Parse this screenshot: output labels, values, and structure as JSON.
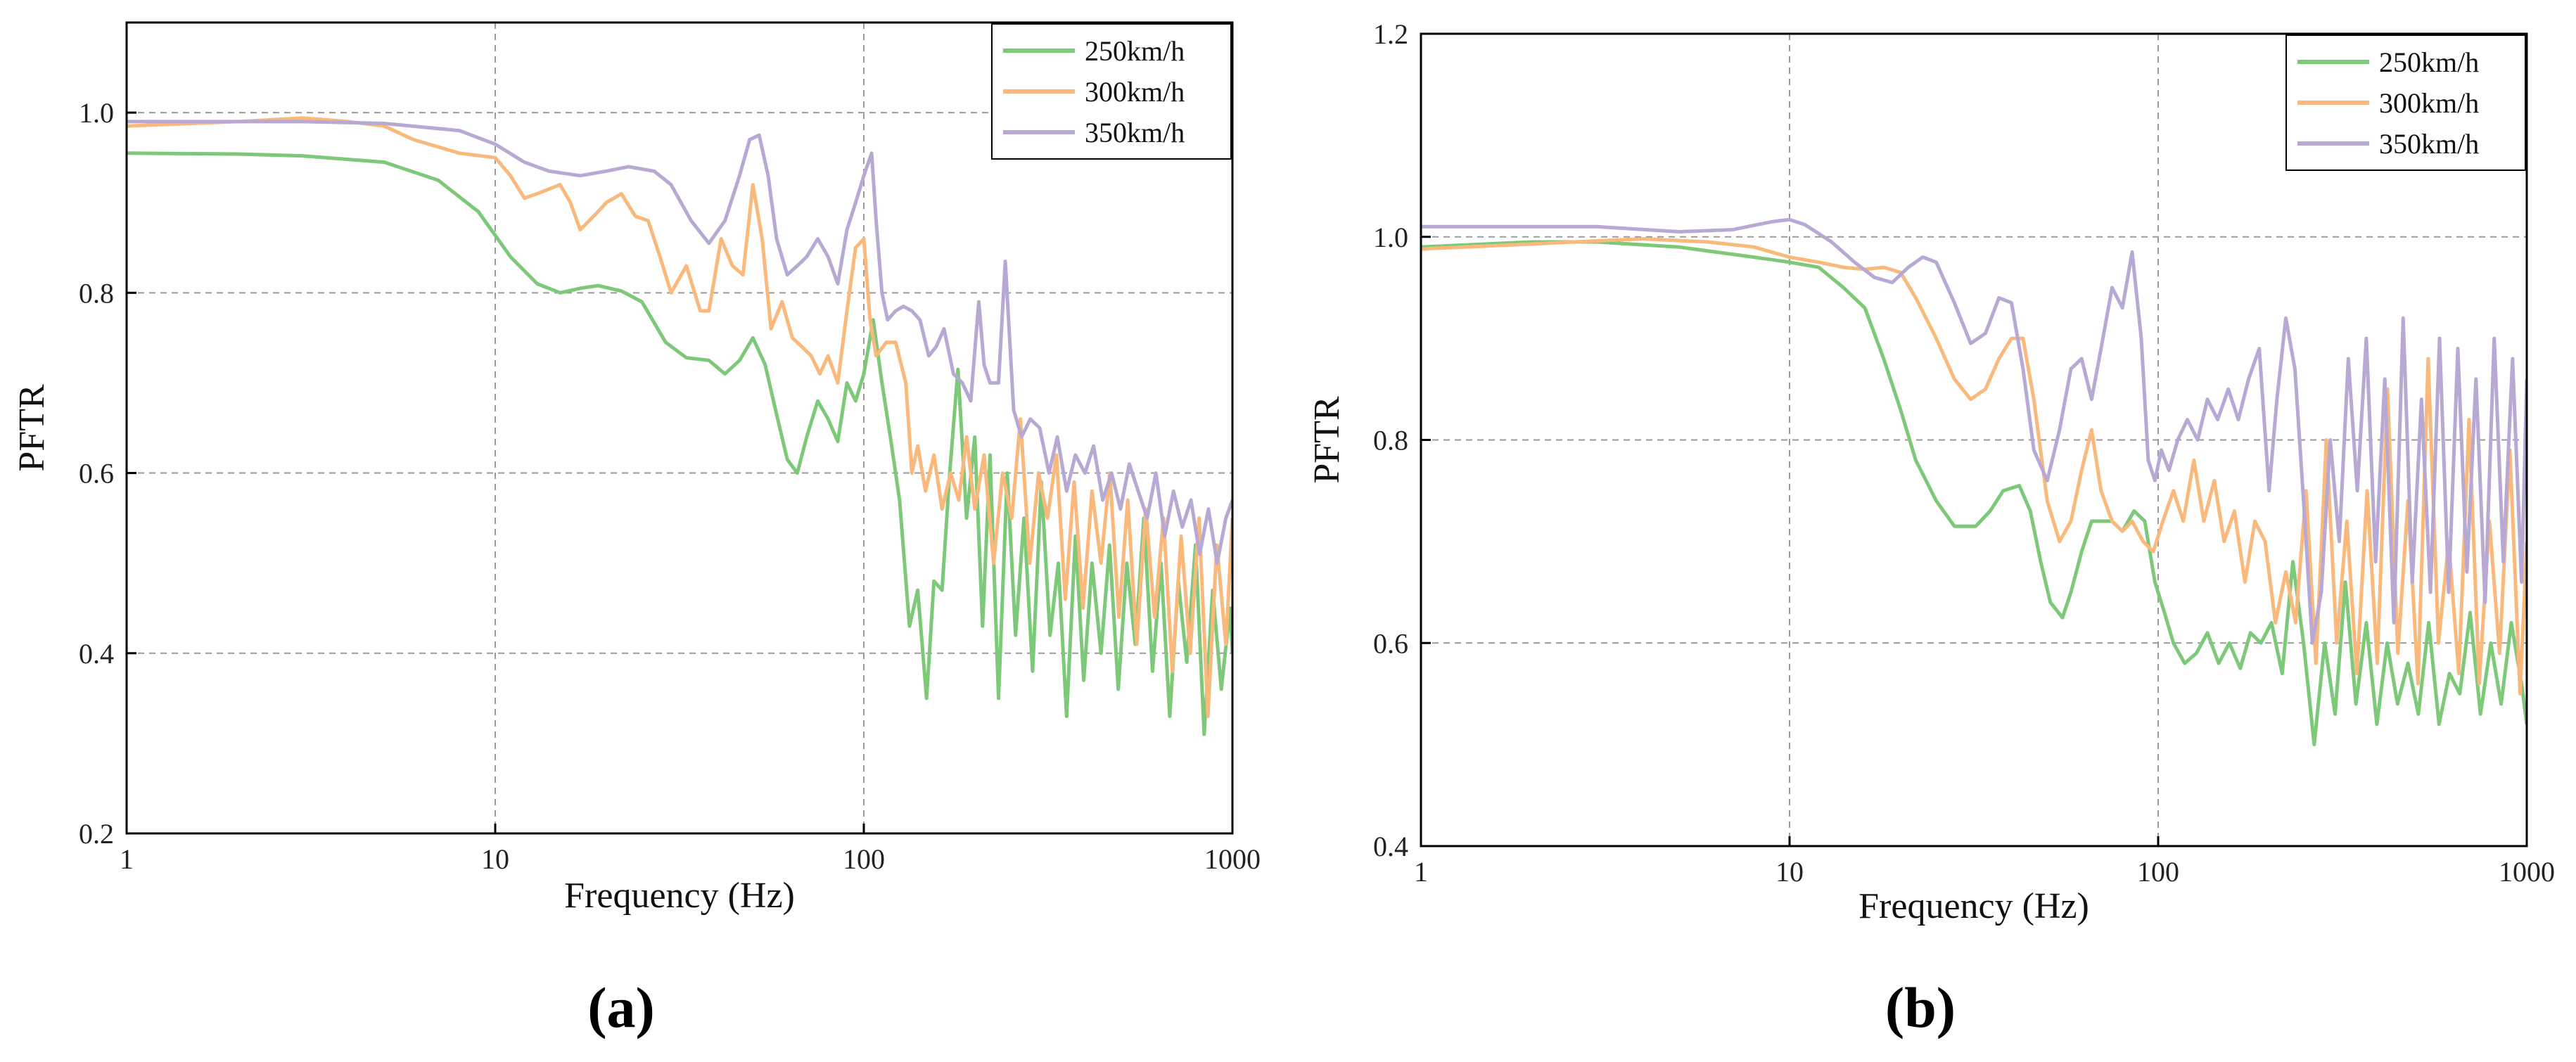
{
  "colors": {
    "250km/h": "#7ec87a",
    "300km/h": "#f9b97c",
    "350km/h": "#b8a8d4",
    "grid": "#9a9a9a"
  },
  "chart_data": [
    {
      "panel_label": "(a)",
      "type": "line",
      "xscale": "log",
      "xlim": [
        1,
        1000
      ],
      "ylim": [
        0.2,
        1.1
      ],
      "xticks": [
        1,
        10,
        100,
        1000
      ],
      "xtick_labels": [
        "1",
        "10",
        "100",
        "1000"
      ],
      "yticks": [
        0.2,
        0.4,
        0.6,
        0.8,
        1.0
      ],
      "ytick_labels": [
        "0.2",
        "0.4",
        "0.6",
        "0.8",
        "1.0"
      ],
      "xlabel": "Frequency (Hz)",
      "ylabel": "PFTR",
      "grid": true,
      "legend_position": "top-right",
      "series": [
        {
          "name": "250km/h",
          "x": [
            1,
            2,
            3,
            5,
            7,
            9,
            11,
            13,
            15,
            17,
            19,
            22,
            25,
            29,
            33,
            38,
            42,
            46,
            50,
            54,
            58,
            62,
            66,
            70,
            75,
            80,
            85,
            90,
            95,
            100,
            106,
            112,
            118,
            125,
            133,
            140,
            148,
            155,
            163,
            171,
            180,
            190,
            200,
            210,
            220,
            232,
            245,
            258,
            272,
            287,
            303,
            320,
            337,
            355,
            375,
            395,
            416,
            440,
            464,
            490,
            517,
            545,
            575,
            607,
            640,
            676,
            713,
            752,
            794,
            838,
            884,
            933,
            985,
            1000
          ],
          "y": [
            0.955,
            0.954,
            0.952,
            0.945,
            0.925,
            0.89,
            0.84,
            0.81,
            0.8,
            0.805,
            0.808,
            0.802,
            0.79,
            0.745,
            0.728,
            0.725,
            0.71,
            0.725,
            0.75,
            0.72,
            0.665,
            0.615,
            0.6,
            0.64,
            0.68,
            0.66,
            0.635,
            0.7,
            0.68,
            0.71,
            0.77,
            0.7,
            0.64,
            0.57,
            0.43,
            0.47,
            0.35,
            0.48,
            0.47,
            0.6,
            0.715,
            0.55,
            0.64,
            0.43,
            0.62,
            0.35,
            0.6,
            0.42,
            0.55,
            0.38,
            0.59,
            0.42,
            0.5,
            0.33,
            0.53,
            0.37,
            0.5,
            0.4,
            0.52,
            0.36,
            0.5,
            0.41,
            0.55,
            0.38,
            0.5,
            0.33,
            0.48,
            0.39,
            0.52,
            0.31,
            0.47,
            0.36,
            0.45,
            0.4
          ]
        },
        {
          "name": "300km/h",
          "x": [
            1,
            2,
            3,
            4,
            5,
            6,
            8,
            10,
            11,
            12,
            13,
            15,
            16,
            17,
            19,
            20,
            22,
            24,
            26,
            28,
            30,
            33,
            36,
            38,
            41,
            44,
            47,
            50,
            53,
            56,
            60,
            64,
            68,
            72,
            76,
            80,
            85,
            90,
            95,
            100,
            104,
            108,
            115,
            122,
            130,
            135,
            140,
            147,
            155,
            163,
            172,
            181,
            190,
            200,
            212,
            225,
            238,
            252,
            266,
            282,
            298,
            315,
            333,
            352,
            372,
            393,
            416,
            440,
            465,
            492,
            520,
            550,
            582,
            615,
            650,
            687,
            726,
            768,
            812,
            858,
            907,
            960,
            1000
          ],
          "y": [
            0.985,
            0.99,
            0.994,
            0.99,
            0.985,
            0.97,
            0.955,
            0.95,
            0.93,
            0.905,
            0.91,
            0.92,
            0.9,
            0.87,
            0.89,
            0.9,
            0.91,
            0.885,
            0.88,
            0.84,
            0.8,
            0.83,
            0.78,
            0.78,
            0.86,
            0.83,
            0.82,
            0.92,
            0.86,
            0.76,
            0.79,
            0.75,
            0.74,
            0.73,
            0.71,
            0.73,
            0.7,
            0.78,
            0.85,
            0.86,
            0.77,
            0.73,
            0.745,
            0.745,
            0.7,
            0.6,
            0.63,
            0.58,
            0.62,
            0.56,
            0.6,
            0.57,
            0.64,
            0.56,
            0.62,
            0.5,
            0.6,
            0.55,
            0.66,
            0.5,
            0.6,
            0.55,
            0.62,
            0.46,
            0.59,
            0.45,
            0.58,
            0.5,
            0.6,
            0.44,
            0.57,
            0.41,
            0.56,
            0.44,
            0.55,
            0.38,
            0.53,
            0.4,
            0.55,
            0.33,
            0.52,
            0.41,
            0.55
          ]
        },
        {
          "name": "350km/h",
          "x": [
            1,
            2,
            3,
            5,
            8,
            10,
            12,
            14,
            17,
            20,
            23,
            27,
            30,
            34,
            38,
            42,
            46,
            49,
            52,
            55,
            58,
            62,
            66,
            70,
            75,
            80,
            85,
            90,
            95,
            100,
            105,
            108,
            112,
            116,
            122,
            128,
            135,
            142,
            150,
            157,
            165,
            175,
            185,
            195,
            205,
            212,
            220,
            232,
            242,
            255,
            268,
            283,
            300,
            318,
            335,
            355,
            375,
            398,
            420,
            445,
            470,
            497,
            525,
            555,
            587,
            620,
            655,
            692,
            731,
            772,
            815,
            861,
            909,
            960,
            1000
          ],
          "y": [
            0.99,
            0.99,
            0.99,
            0.988,
            0.98,
            0.965,
            0.945,
            0.935,
            0.93,
            0.935,
            0.94,
            0.935,
            0.92,
            0.88,
            0.855,
            0.88,
            0.93,
            0.97,
            0.975,
            0.93,
            0.86,
            0.82,
            0.83,
            0.84,
            0.86,
            0.84,
            0.81,
            0.87,
            0.9,
            0.93,
            0.955,
            0.88,
            0.8,
            0.77,
            0.78,
            0.785,
            0.78,
            0.77,
            0.73,
            0.74,
            0.76,
            0.71,
            0.7,
            0.68,
            0.79,
            0.72,
            0.7,
            0.7,
            0.835,
            0.67,
            0.64,
            0.66,
            0.65,
            0.6,
            0.64,
            0.58,
            0.62,
            0.6,
            0.63,
            0.57,
            0.6,
            0.56,
            0.61,
            0.58,
            0.55,
            0.6,
            0.53,
            0.58,
            0.54,
            0.57,
            0.51,
            0.56,
            0.5,
            0.55,
            0.57
          ]
        }
      ]
    },
    {
      "panel_label": "(b)",
      "type": "line",
      "xscale": "log",
      "xlim": [
        1,
        1000
      ],
      "ylim": [
        0.4,
        1.2
      ],
      "xticks": [
        1,
        10,
        100,
        1000
      ],
      "xtick_labels": [
        "1",
        "10",
        "100",
        "1000"
      ],
      "yticks": [
        0.4,
        0.6,
        0.8,
        1.0,
        1.2
      ],
      "ytick_labels": [
        "0.4",
        "0.6",
        "0.8",
        "1.0",
        "1.2"
      ],
      "xlabel": "Frequency (Hz)",
      "ylabel": "PFTR",
      "grid": true,
      "legend_position": "top-right",
      "series": [
        {
          "name": "250km/h",
          "x": [
            1,
            2,
            3,
            5,
            8,
            10,
            12,
            14,
            16,
            18,
            20,
            22,
            25,
            28,
            32,
            35,
            38,
            42,
            45,
            48,
            51,
            55,
            58,
            62,
            66,
            70,
            75,
            80,
            86,
            92,
            98,
            104,
            110,
            118,
            127,
            136,
            146,
            156,
            167,
            178,
            190,
            203,
            217,
            232,
            248,
            265,
            283,
            302,
            322,
            344,
            367,
            392,
            418,
            446,
            476,
            508,
            542,
            578,
            617,
            658,
            702,
            749,
            799,
            852,
            908,
            968,
            1000
          ],
          "y": [
            0.99,
            0.995,
            0.995,
            0.99,
            0.98,
            0.975,
            0.97,
            0.95,
            0.93,
            0.88,
            0.83,
            0.78,
            0.74,
            0.715,
            0.715,
            0.73,
            0.75,
            0.755,
            0.73,
            0.68,
            0.64,
            0.625,
            0.65,
            0.69,
            0.72,
            0.72,
            0.72,
            0.71,
            0.73,
            0.72,
            0.66,
            0.63,
            0.6,
            0.58,
            0.59,
            0.61,
            0.58,
            0.6,
            0.575,
            0.61,
            0.6,
            0.62,
            0.57,
            0.68,
            0.6,
            0.5,
            0.6,
            0.53,
            0.66,
            0.54,
            0.62,
            0.52,
            0.6,
            0.54,
            0.58,
            0.53,
            0.62,
            0.52,
            0.57,
            0.55,
            0.63,
            0.53,
            0.6,
            0.54,
            0.62,
            0.56,
            0.52
          ]
        },
        {
          "name": "300km/h",
          "x": [
            1,
            2,
            3,
            4,
            6,
            8,
            10,
            12,
            14,
            16,
            18,
            20,
            22,
            25,
            28,
            31,
            34,
            37,
            40,
            43,
            46,
            50,
            54,
            58,
            62,
            66,
            70,
            75,
            80,
            85,
            91,
            97,
            103,
            110,
            117,
            125,
            133,
            142,
            151,
            161,
            172,
            183,
            195,
            208,
            222,
            236,
            252,
            268,
            286,
            305,
            325,
            346,
            369,
            393,
            419,
            447,
            476,
            507,
            540,
            576,
            614,
            654,
            697,
            743,
            792,
            844,
            900,
            959,
            1000
          ],
          "y": [
            0.988,
            0.993,
            0.996,
            0.998,
            0.995,
            0.99,
            0.98,
            0.975,
            0.97,
            0.968,
            0.97,
            0.965,
            0.94,
            0.9,
            0.86,
            0.84,
            0.85,
            0.88,
            0.9,
            0.9,
            0.84,
            0.74,
            0.7,
            0.72,
            0.77,
            0.81,
            0.75,
            0.72,
            0.71,
            0.72,
            0.7,
            0.69,
            0.72,
            0.75,
            0.72,
            0.78,
            0.72,
            0.76,
            0.7,
            0.73,
            0.66,
            0.72,
            0.7,
            0.62,
            0.67,
            0.62,
            0.75,
            0.58,
            0.8,
            0.6,
            0.72,
            0.57,
            0.75,
            0.58,
            0.85,
            0.59,
            0.74,
            0.56,
            0.88,
            0.6,
            0.7,
            0.57,
            0.82,
            0.56,
            0.72,
            0.59,
            0.79,
            0.55,
            0.7
          ]
        },
        {
          "name": "350km/h",
          "x": [
            1,
            2,
            3,
            5,
            7,
            9,
            10,
            11,
            13,
            15,
            17,
            19,
            21,
            23,
            25,
            28,
            31,
            34,
            37,
            40,
            43,
            46,
            50,
            54,
            58,
            62,
            66,
            70,
            75,
            80,
            85,
            90,
            94,
            98,
            102,
            107,
            113,
            120,
            128,
            136,
            145,
            155,
            165,
            176,
            188,
            200,
            210,
            222,
            235,
            248,
            262,
            277,
            293,
            310,
            328,
            347,
            367,
            389,
            412,
            436,
            462,
            489,
            518,
            548,
            580,
            614,
            650,
            688,
            728,
            771,
            816,
            864,
            915,
            968,
            1000
          ],
          "y": [
            1.01,
            1.01,
            1.01,
            1.005,
            1.007,
            1.015,
            1.017,
            1.012,
            0.995,
            0.975,
            0.96,
            0.955,
            0.97,
            0.98,
            0.975,
            0.935,
            0.895,
            0.905,
            0.94,
            0.935,
            0.87,
            0.79,
            0.76,
            0.81,
            0.87,
            0.88,
            0.84,
            0.89,
            0.95,
            0.93,
            0.985,
            0.9,
            0.78,
            0.76,
            0.79,
            0.77,
            0.8,
            0.82,
            0.8,
            0.84,
            0.82,
            0.85,
            0.82,
            0.86,
            0.89,
            0.75,
            0.84,
            0.92,
            0.87,
            0.74,
            0.6,
            0.65,
            0.8,
            0.7,
            0.88,
            0.75,
            0.9,
            0.68,
            0.86,
            0.62,
            0.92,
            0.66,
            0.84,
            0.65,
            0.9,
            0.65,
            0.89,
            0.67,
            0.86,
            0.64,
            0.9,
            0.68,
            0.88,
            0.66,
            0.86
          ]
        }
      ]
    }
  ]
}
